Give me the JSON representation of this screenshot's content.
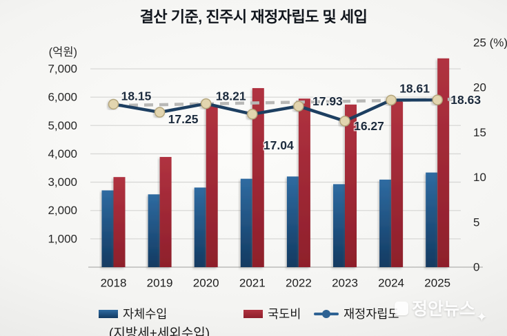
{
  "title": "결산 기준, 진주시 재정자립도 및 세입",
  "watermark": {
    "text": "정안뉴스",
    "sparkle": "✦"
  },
  "chart_data": {
    "type": "combo",
    "categories": [
      "2018",
      "2019",
      "2020",
      "2021",
      "2022",
      "2023",
      "2024",
      "2025"
    ],
    "unit_left": "(억원)",
    "unit_right": "(%)",
    "left_axis": {
      "ticks": [
        1000,
        2000,
        3000,
        4000,
        5000,
        6000,
        7000
      ],
      "min": 0,
      "max": 7000
    },
    "right_axis": {
      "ticks": [
        0,
        5,
        10,
        15,
        20,
        25
      ],
      "min": 0,
      "max": 25
    },
    "grid": "horizontal",
    "legend_position": "bottom",
    "series": [
      {
        "name": "자체수입",
        "sublabel": "(지방세+세외수입)",
        "type": "bar",
        "color_top": "#2f6ba1",
        "color_bottom": "#123a61",
        "values": [
          2710,
          2570,
          2810,
          3120,
          3200,
          2930,
          3090,
          3340
        ]
      },
      {
        "name": "국도비",
        "type": "bar",
        "color_top": "#b03240",
        "color_bottom": "#8e1f2b",
        "values": [
          3180,
          3890,
          5710,
          6320,
          5950,
          5740,
          5900,
          7370
        ]
      },
      {
        "name": "재정자립도",
        "type": "line",
        "axis": "right",
        "color": "#1d3f61",
        "marker_fill": "#e2d5af",
        "marker_stroke": "#b4a67c",
        "values": [
          18.15,
          17.25,
          18.21,
          17.04,
          17.93,
          16.27,
          18.61,
          18.63
        ],
        "labels": [
          "18.15",
          "17.25",
          "18.21",
          "17.04",
          "17.93",
          "16.27",
          "18.61",
          "18.63"
        ],
        "label_offsets": [
          [
            33,
            -12
          ],
          [
            34,
            10
          ],
          [
            36,
            -11
          ],
          [
            38,
            45
          ],
          [
            42,
            -7
          ],
          [
            35,
            7
          ],
          [
            34,
            -17
          ],
          [
            41,
            0
          ]
        ]
      }
    ],
    "trendline": {
      "style": "dashed",
      "color": "#b8b8b6",
      "start": 18.0,
      "end": 18.7
    }
  }
}
